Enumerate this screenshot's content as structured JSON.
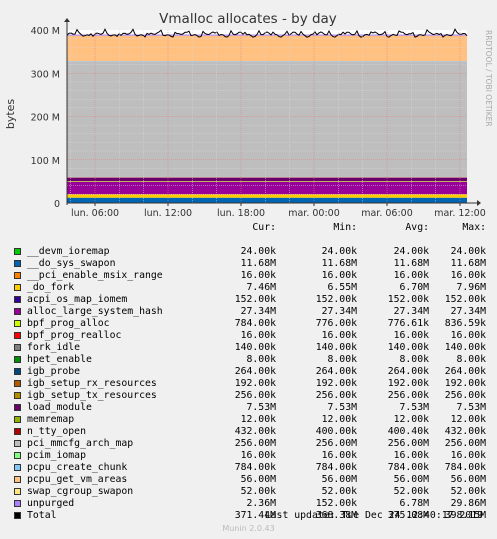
{
  "chart_data": {
    "type": "area",
    "title": "Vmalloc allocates - by day",
    "ylabel": "bytes",
    "side_label": "RRDTOOL / TOBI OETIKER",
    "ylim": [
      0,
      400000000
    ],
    "y_ticks": [
      {
        "value": 0,
        "label": "0"
      },
      {
        "value": 100000000,
        "label": "100 M"
      },
      {
        "value": 200000000,
        "label": "200 M"
      },
      {
        "value": 300000000,
        "label": "300 M"
      },
      {
        "value": 400000000,
        "label": "400 M"
      }
    ],
    "x_ticks": [
      "lun. 06:00",
      "lun. 12:00",
      "lun. 18:00",
      "mar. 00:00",
      "mar. 06:00",
      "mar. 12:00"
    ],
    "columns": [
      "Cur:",
      "Min:",
      "Avg:",
      "Max:"
    ],
    "series": [
      {
        "name": "__devm_ioremap",
        "color": "#00cc00",
        "cur": "24.00k",
        "min": "24.00k",
        "avg": "24.00k",
        "max": "24.00k"
      },
      {
        "name": "__do_sys_swapon",
        "color": "#0066b3",
        "cur": "11.68M",
        "min": "11.68M",
        "avg": "11.68M",
        "max": "11.68M"
      },
      {
        "name": "__pci_enable_msix_range",
        "color": "#ff8000",
        "cur": "16.00k",
        "min": "16.00k",
        "avg": "16.00k",
        "max": "16.00k"
      },
      {
        "name": "_do_fork",
        "color": "#ffcc00",
        "cur": "7.46M",
        "min": "6.55M",
        "avg": "6.70M",
        "max": "7.96M"
      },
      {
        "name": "acpi_os_map_iomem",
        "color": "#330099",
        "cur": "152.00k",
        "min": "152.00k",
        "avg": "152.00k",
        "max": "152.00k"
      },
      {
        "name": "alloc_large_system_hash",
        "color": "#990099",
        "cur": "27.34M",
        "min": "27.34M",
        "avg": "27.34M",
        "max": "27.34M"
      },
      {
        "name": "bpf_prog_alloc",
        "color": "#ccff00",
        "cur": "784.00k",
        "min": "776.00k",
        "avg": "776.61k",
        "max": "836.59k"
      },
      {
        "name": "bpf_prog_realloc",
        "color": "#ff0000",
        "cur": "16.00k",
        "min": "16.00k",
        "avg": "16.00k",
        "max": "16.00k"
      },
      {
        "name": "fork_idle",
        "color": "#808080",
        "cur": "140.00k",
        "min": "140.00k",
        "avg": "140.00k",
        "max": "140.00k"
      },
      {
        "name": "hpet_enable",
        "color": "#008f00",
        "cur": "8.00k",
        "min": "8.00k",
        "avg": "8.00k",
        "max": "8.00k"
      },
      {
        "name": "igb_probe",
        "color": "#00487d",
        "cur": "264.00k",
        "min": "264.00k",
        "avg": "264.00k",
        "max": "264.00k"
      },
      {
        "name": "igb_setup_rx_resources",
        "color": "#b35a00",
        "cur": "192.00k",
        "min": "192.00k",
        "avg": "192.00k",
        "max": "192.00k"
      },
      {
        "name": "igb_setup_tx_resources",
        "color": "#b38f00",
        "cur": "256.00k",
        "min": "256.00k",
        "avg": "256.00k",
        "max": "256.00k"
      },
      {
        "name": "load_module",
        "color": "#6b006b",
        "cur": "7.53M",
        "min": "7.53M",
        "avg": "7.53M",
        "max": "7.53M"
      },
      {
        "name": "memremap",
        "color": "#8fb300",
        "cur": "12.00k",
        "min": "12.00k",
        "avg": "12.00k",
        "max": "12.00k"
      },
      {
        "name": "n_tty_open",
        "color": "#b30000",
        "cur": "432.00k",
        "min": "400.00k",
        "avg": "400.40k",
        "max": "432.00k"
      },
      {
        "name": "pci_mmcfg_arch_map",
        "color": "#bebebe",
        "cur": "256.00M",
        "min": "256.00M",
        "avg": "256.00M",
        "max": "256.00M"
      },
      {
        "name": "pcim_iomap",
        "color": "#80ff80",
        "cur": "16.00k",
        "min": "16.00k",
        "avg": "16.00k",
        "max": "16.00k"
      },
      {
        "name": "pcpu_create_chunk",
        "color": "#80c9ff",
        "cur": "784.00k",
        "min": "784.00k",
        "avg": "784.00k",
        "max": "784.00k"
      },
      {
        "name": "pcpu_get_vm_areas",
        "color": "#ffc080",
        "cur": "56.00M",
        "min": "56.00M",
        "avg": "56.00M",
        "max": "56.00M"
      },
      {
        "name": "swap_cgroup_swapon",
        "color": "#ffe680",
        "cur": "52.00k",
        "min": "52.00k",
        "avg": "52.00k",
        "max": "52.00k"
      },
      {
        "name": "unpurged",
        "color": "#aa80ff",
        "cur": "2.36M",
        "min": "152.00k",
        "avg": "6.78M",
        "max": "29.86M"
      },
      {
        "name": "Total",
        "color": "#000000",
        "cur": "371.44M",
        "min": "368.38M",
        "avg": "375.08M",
        "max": "398.15M"
      }
    ],
    "stack_values_bytes": [
      24576,
      12247367,
      16384,
      7822377,
      155648,
      28667658,
      802816,
      16384,
      143360,
      8192,
      270336,
      196608,
      262144,
      7895777,
      12288,
      442368,
      268435456,
      16384,
      802816,
      58720256,
      53248,
      2474639,
      0
    ]
  },
  "footer": {
    "last_update": "Last update: Tue Dec 24 12:40:17 2019",
    "munin": "Munin 2.0.43"
  }
}
